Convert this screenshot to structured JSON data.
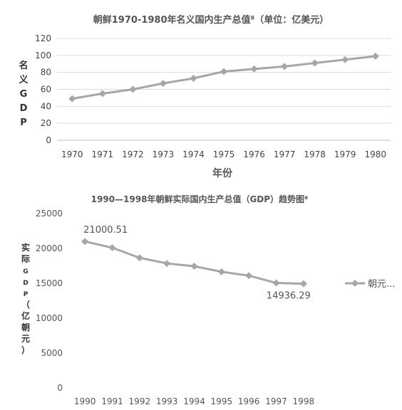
{
  "chart_data": [
    {
      "type": "line",
      "title": "朝鲜1970-1980年名义国内生产总值⁸（单位：亿美元）",
      "xlabel": "年份",
      "ylabel": "名义GDP",
      "categories": [
        "1970",
        "1971",
        "1972",
        "1973",
        "1974",
        "1975",
        "1976",
        "1977",
        "1978",
        "1979",
        "1980"
      ],
      "series": [
        {
          "values": [
            49,
            55,
            60,
            67,
            73,
            81,
            84,
            87,
            91,
            95,
            99
          ]
        }
      ],
      "ylim": [
        0,
        120
      ],
      "yticks": [
        "0",
        "20",
        "40",
        "60",
        "80",
        "100",
        "120"
      ],
      "grid": true,
      "color": "#a6a6a6"
    },
    {
      "type": "line",
      "title": "1990—1998年朝鲜实际国内生产总值（GDP）趋势图⁸",
      "xlabel": "",
      "ylabel": "实际GDP（亿朝元）",
      "categories": [
        "1990",
        "1991",
        "1992",
        "1993",
        "1994",
        "1995",
        "1996",
        "1997",
        "1998"
      ],
      "series": [
        {
          "name": "朝元...",
          "values": [
            21000.51,
            20100,
            18650,
            17850,
            17450,
            16650,
            16100,
            15050,
            14936.29
          ]
        }
      ],
      "data_labels": [
        "21000.51",
        "14936.29"
      ],
      "ylim": [
        0,
        25000
      ],
      "yticks": [
        "0",
        "5000",
        "10000",
        "15000",
        "20000",
        "25000"
      ],
      "grid": false,
      "legend_position": "right",
      "color": "#a6a6a6"
    }
  ]
}
